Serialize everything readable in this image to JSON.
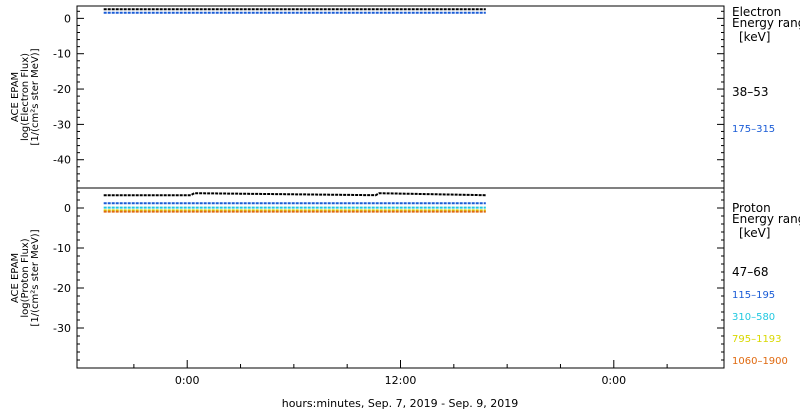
{
  "chart_data": [
    {
      "type": "line",
      "panel": "electron",
      "ylabel": [
        "ACE EPAM",
        "log(Electron Flux)",
        "[1/(cm²s ster MeV)]"
      ],
      "ylim": [
        -48,
        3.5
      ],
      "yticks": [
        0,
        -10,
        -20,
        -30,
        -40
      ],
      "xlim": [
        -6.2,
        30.2
      ],
      "x_unit": "hours from 00:00 Sep 8, 2019",
      "legend": {
        "title": [
          "Electron",
          "Energy ranges",
          "[keV]"
        ],
        "entries": [
          "38–53",
          "175–315"
        ]
      },
      "series": [
        {
          "name": "38–53",
          "color": "#000000",
          "x": [
            -4.7,
            16.8
          ],
          "values": [
            2.6,
            2.6
          ]
        },
        {
          "name": "175–315",
          "color": "#1a5cd6",
          "x": [
            -4.7,
            16.8
          ],
          "values": [
            1.6,
            1.6
          ]
        }
      ]
    },
    {
      "type": "line",
      "panel": "proton",
      "ylabel": [
        "ACE EPAM",
        "log(Proton Flux)",
        "[1/(cm²s ster MeV)]"
      ],
      "ylim": [
        -40,
        5
      ],
      "yticks": [
        0,
        -10,
        -20,
        -30
      ],
      "xlim": [
        -6.2,
        30.2
      ],
      "xticks": [
        0,
        12,
        24
      ],
      "xticklabels": [
        "0:00",
        "12:00",
        "0:00"
      ],
      "xminor": [
        -3,
        3,
        6,
        9,
        15,
        18,
        21,
        27
      ],
      "xlabel": "hours:minutes, Sep.  7, 2019 - Sep.  9, 2019",
      "legend": {
        "title": [
          "Proton",
          "Energy ranges",
          "[keV]"
        ],
        "entries": [
          "47–68",
          "115–195",
          "310–580",
          "795–1193",
          "1060–1900"
        ]
      },
      "series": [
        {
          "name": "47–68",
          "color": "#000000",
          "x": [
            -4.7,
            0.2,
            0.4,
            10.6,
            10.8,
            16.8
          ],
          "values": [
            3.2,
            3.2,
            3.7,
            3.2,
            3.7,
            3.2
          ]
        },
        {
          "name": "115–195",
          "color": "#1a5cd6",
          "x": [
            -4.7,
            16.8
          ],
          "values": [
            1.2,
            1.2
          ]
        },
        {
          "name": "310–580",
          "color": "#22c8e0",
          "x": [
            -4.7,
            16.8
          ],
          "values": [
            0.1,
            0.1
          ]
        },
        {
          "name": "795–1193",
          "color": "#d8d800",
          "x": [
            -4.7,
            16.8
          ],
          "values": [
            -0.6,
            -0.6
          ]
        },
        {
          "name": "1060–1900",
          "color": "#e06a10",
          "x": [
            -4.7,
            16.8
          ],
          "values": [
            -0.9,
            -0.9
          ]
        }
      ]
    }
  ]
}
